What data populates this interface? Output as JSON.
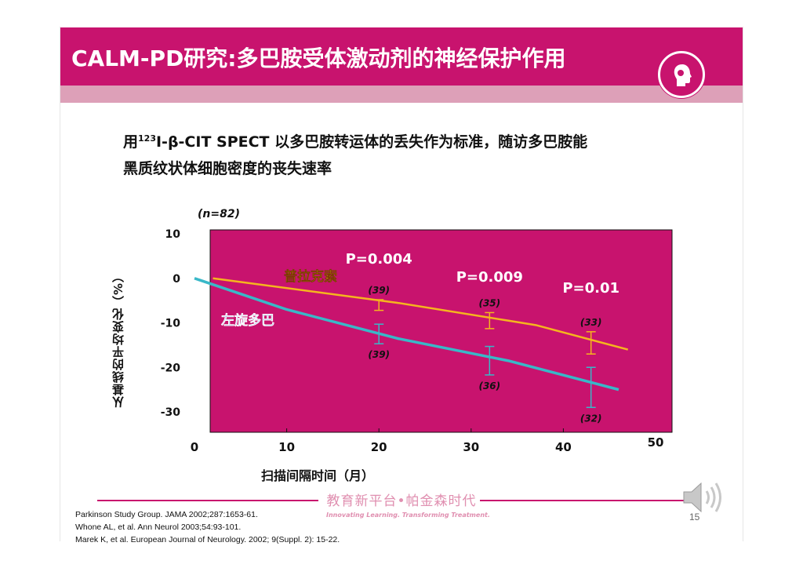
{
  "title": "CALM-PD研究:多巴胺受体激动剂的神经保护作用",
  "subtitle": {
    "prefix": "用",
    "sup": "123",
    "tracer": "I-β-CIT SPECT",
    "line1_rest": " 以多巴胺转运体的丢失作为标准，随访多巴胺能",
    "line2": "黑质纹状体细胞密度的丧失速率"
  },
  "colors": {
    "accent": "#c8136e",
    "plot_bg": "#c8136e",
    "pramipexole": "#f5b51e",
    "levodopa": "#39b8c8"
  },
  "chart_data": {
    "type": "line",
    "title": "",
    "n_label": "(n=82)",
    "xlabel": "扫描间隔时间（月）",
    "ylabel": "从基线的平均变化（%）",
    "xlim": [
      0,
      50
    ],
    "ylim": [
      -35,
      10
    ],
    "x_ticks": [
      "0",
      "10",
      "20",
      "30",
      "40",
      "50"
    ],
    "y_ticks": [
      "10",
      "0",
      "-10",
      "-20",
      "-30"
    ],
    "series": [
      {
        "name": "普拉克索",
        "color_key": "pramipexole",
        "x": [
          2,
          22,
          34,
          37,
          47
        ],
        "y": [
          0,
          -5.5,
          -9.5,
          -10.5,
          -16
        ],
        "error_points": [
          {
            "x": 20,
            "y": -6,
            "err": 1.2,
            "n": "(39)"
          },
          {
            "x": 32,
            "y": -9.5,
            "err": 1.8,
            "n": "(35)"
          },
          {
            "x": 43,
            "y": -14.5,
            "err": 2.5,
            "n": "(33)"
          }
        ]
      },
      {
        "name": "左旋多巴",
        "color_key": "levodopa",
        "x": [
          0,
          10,
          22,
          34,
          46
        ],
        "y": [
          0,
          -7,
          -13.5,
          -18.5,
          -25
        ],
        "error_points": [
          {
            "x": 20,
            "y": -12.5,
            "err": 2.2,
            "n": "(39)"
          },
          {
            "x": 32,
            "y": -18.5,
            "err": 3.2,
            "n": "(36)"
          },
          {
            "x": 43,
            "y": -24.5,
            "err": 4.5,
            "n": "(32)"
          }
        ]
      }
    ],
    "annotations": [
      {
        "text": "P=0.004",
        "x": 20,
        "y": 4
      },
      {
        "text": "P=0.009",
        "x": 32,
        "y": 0
      },
      {
        "text": "P=0.01",
        "x": 43,
        "y": -2.5
      }
    ]
  },
  "footer": {
    "logo_cn": "教育新平台•帕金森时代",
    "logo_en": "Innovating Learning. Transforming Treatment.",
    "references": [
      "Parkinson Study Group. JAMA 2002;287:1653-61.",
      "Whone AL, et al. Ann Neurol 2003;54:93-101.",
      "Marek K, et al. European Journal of Neurology. 2002; 9(Suppl. 2): 15-22."
    ],
    "page_number": "15"
  },
  "icons": {
    "head": "head-profile-icon",
    "speaker": "speaker-icon"
  }
}
